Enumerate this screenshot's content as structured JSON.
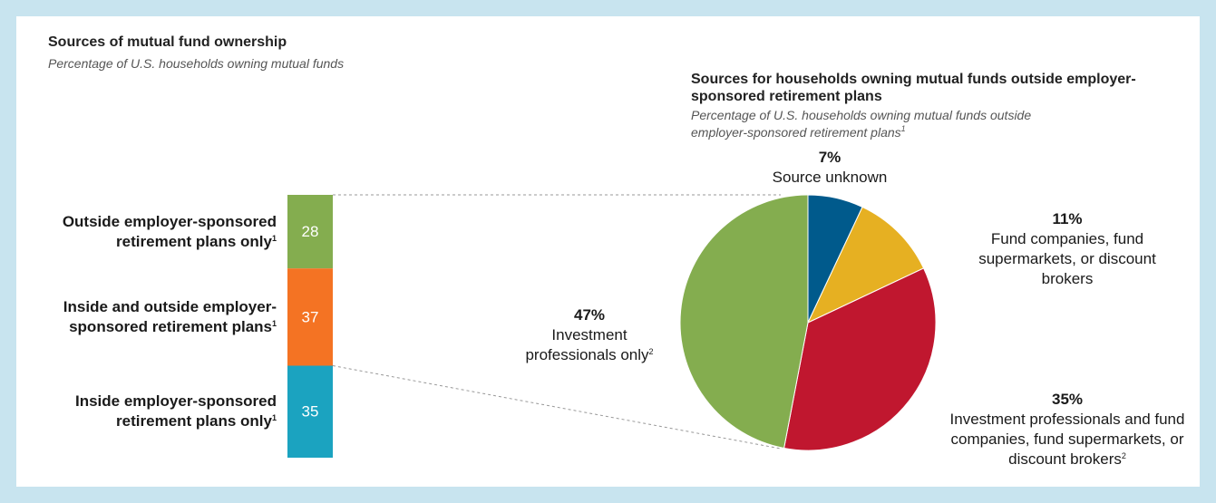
{
  "chart_data": [
    {
      "type": "bar",
      "title": "Sources of mutual fund ownership",
      "subtitle": "Percentage of U.S. households owning mutual funds",
      "categories": [
        "Outside employer-sponsored retirement plans only",
        "Inside and outside employer-sponsored retirement plans",
        "Inside employer-sponsored retirement plans only"
      ],
      "footnotes": [
        "1",
        "1",
        "1"
      ],
      "values": [
        28,
        37,
        35
      ],
      "colors": [
        "#84ad4f",
        "#f47323",
        "#1ba3c0"
      ]
    },
    {
      "type": "pie",
      "title": "Sources for households owning mutual funds outside employer-sponsored retirement plans",
      "subtitle": "Percentage of U.S. households owning mutual funds outside employer-sponsored retirement plans",
      "subtitle_footnote": "1",
      "categories": [
        "Source unknown",
        "Fund companies, fund supermarkets, or discount brokers",
        "Investment professionals and fund companies, fund supermarkets, or discount brokers",
        "Investment professionals only"
      ],
      "footnotes": [
        null,
        null,
        "2",
        "2"
      ],
      "values": [
        7,
        11,
        35,
        47
      ],
      "value_labels": [
        "7%",
        "11%",
        "35%",
        "47%"
      ],
      "colors": [
        "#005a8c",
        "#e6b022",
        "#c0172f",
        "#84ad4f"
      ]
    }
  ]
}
